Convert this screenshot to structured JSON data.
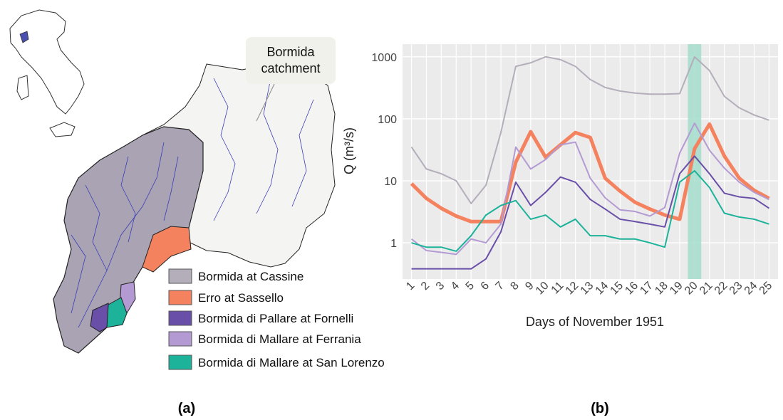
{
  "chart_data": {
    "type": "line",
    "title": "Bormida catchment",
    "panel_labels": [
      "(a)",
      "(b)"
    ],
    "x_label": "Days of November 1951",
    "y_label": "Q (m³/s)",
    "x": [
      1,
      2,
      3,
      4,
      5,
      6,
      7,
      8,
      9,
      10,
      11,
      12,
      13,
      14,
      15,
      16,
      17,
      18,
      19,
      20,
      21,
      22,
      23,
      24,
      25
    ],
    "xlim": [
      0.4,
      25.6
    ],
    "xticks": [
      1,
      2,
      3,
      4,
      5,
      6,
      7,
      8,
      9,
      10,
      11,
      12,
      13,
      14,
      15,
      16,
      17,
      18,
      19,
      20,
      21,
      22,
      23,
      24,
      25
    ],
    "ylim": [
      0.26,
      1600
    ],
    "yticks": [
      1,
      10,
      100,
      1000
    ],
    "log_y": true,
    "grid": true,
    "highlight_x": 20,
    "highlight_color": "#9fdcc9",
    "series": [
      {
        "name": "Bormida at Cassine",
        "color": "#b4aebb",
        "linewidth": 2,
        "values": [
          35,
          15.5,
          13,
          10,
          4.3,
          8.5,
          60,
          700,
          800,
          1000,
          900,
          700,
          430,
          320,
          280,
          260,
          250,
          250,
          255,
          1000,
          600,
          230,
          150,
          115,
          95
        ]
      },
      {
        "name": "Erro at Sassello",
        "color": "#f4825f",
        "linewidth": 5,
        "values": [
          9,
          5.2,
          3.6,
          2.7,
          2.2,
          2.2,
          2.2,
          20,
          62,
          24,
          38,
          60,
          50,
          11,
          6.8,
          4.5,
          3.5,
          2.8,
          2.4,
          33,
          82,
          25,
          11,
          7,
          5.2
        ]
      },
      {
        "name": "Bormida di Pallare at Fornelli",
        "color": "#6a4fa8",
        "linewidth": 2,
        "values": [
          0.38,
          0.38,
          0.38,
          0.38,
          0.38,
          0.55,
          1.5,
          9.5,
          4,
          6.5,
          11.5,
          9.5,
          5,
          3.5,
          2.4,
          2.2,
          2,
          1.8,
          13,
          25,
          13,
          6.3,
          5.5,
          5.2,
          3.6
        ]
      },
      {
        "name": "Bormida di Mallare at Ferrania",
        "color": "#b49ad3",
        "linewidth": 2,
        "values": [
          1.15,
          0.75,
          0.7,
          0.65,
          1.15,
          1.0,
          2.0,
          35,
          15.5,
          22,
          38,
          42,
          11,
          5.3,
          3.4,
          3.2,
          2.7,
          3.7,
          28,
          85,
          31,
          16,
          9.5,
          6.5,
          5
        ]
      },
      {
        "name": "Bormida di Mallare at San Lorenzo",
        "color": "#1cb39a",
        "linewidth": 2,
        "values": [
          1.0,
          0.85,
          0.85,
          0.73,
          1.3,
          2.8,
          4,
          4.8,
          2.4,
          2.8,
          1.8,
          2.4,
          1.3,
          1.3,
          1.15,
          1.15,
          1.0,
          0.85,
          9.5,
          14.5,
          7.8,
          3,
          2.6,
          2.4,
          2
        ]
      }
    ]
  }
}
